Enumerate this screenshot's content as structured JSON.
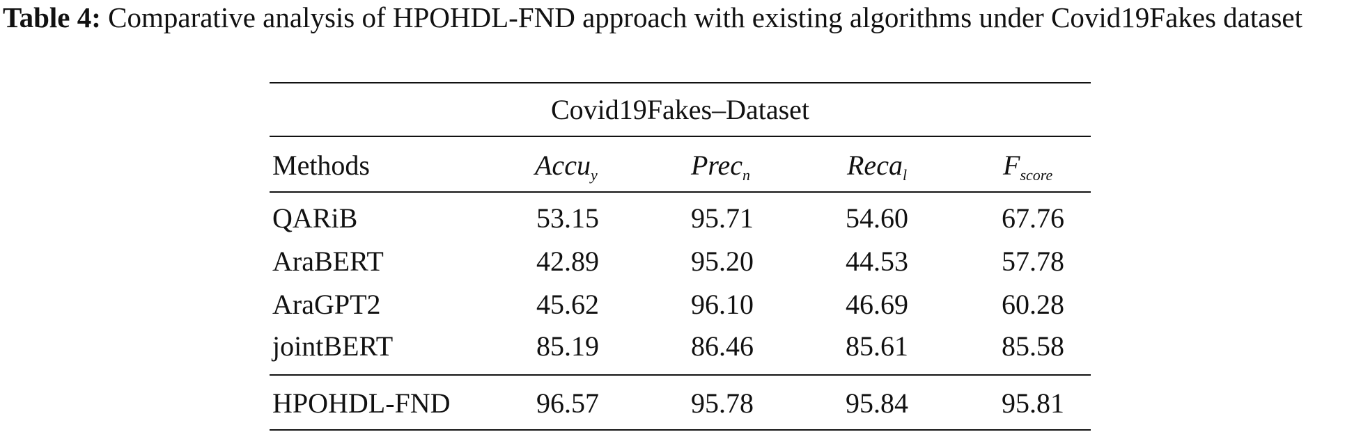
{
  "caption": {
    "label": "Table 4:",
    "text": "Comparative analysis of HPOHDL-FND approach with existing algorithms under Covid19Fakes dataset"
  },
  "table": {
    "dataset_title": "Covid19Fakes–Dataset",
    "header": {
      "methods": "Methods",
      "accu_main": "Accu",
      "accu_sub": "y",
      "prec_main": "Prec",
      "prec_sub": "n",
      "reca_main": "Reca",
      "reca_sub": "l",
      "f_main": "F",
      "f_sub": "score"
    },
    "rows": [
      {
        "method": "QARiB",
        "accu": "53.15",
        "prec": "95.71",
        "reca": "54.60",
        "fscore": "67.76"
      },
      {
        "method": "AraBERT",
        "accu": "42.89",
        "prec": "95.20",
        "reca": "44.53",
        "fscore": "57.78"
      },
      {
        "method": "AraGPT2",
        "accu": "45.62",
        "prec": "96.10",
        "reca": "46.69",
        "fscore": "60.28"
      },
      {
        "method": "jointBERT",
        "accu": "85.19",
        "prec": "86.46",
        "reca": "85.61",
        "fscore": "85.58"
      }
    ],
    "final_row": {
      "method": "HPOHDL-FND",
      "accu": "96.57",
      "prec": "95.78",
      "reca": "95.84",
      "fscore": "95.81"
    }
  }
}
